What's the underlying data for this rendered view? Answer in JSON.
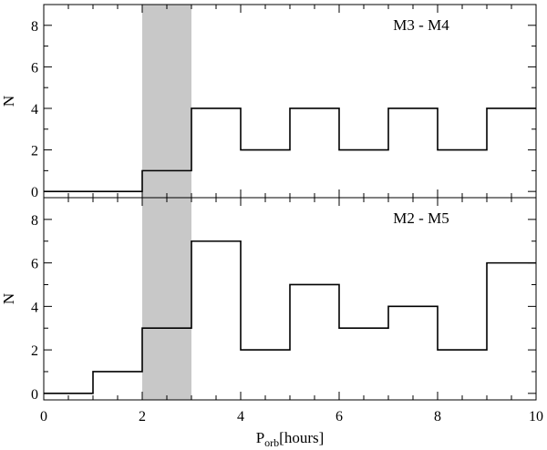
{
  "chart_data": [
    {
      "type": "step-histogram",
      "panel": "top",
      "label": "M3 - M4",
      "ylabel": "N",
      "xlabel": "",
      "xlim": [
        0,
        10
      ],
      "ylim": [
        -0.3,
        9
      ],
      "yticks": [
        0,
        2,
        4,
        6,
        8
      ],
      "bin_edges": [
        0,
        1,
        2,
        3,
        4,
        5,
        6,
        7,
        8,
        9,
        10
      ],
      "values": [
        0,
        0,
        1,
        4,
        2,
        4,
        2,
        4,
        2,
        4
      ],
      "shaded_region": [
        2,
        3
      ],
      "shade_color": "#c8c8c8"
    },
    {
      "type": "step-histogram",
      "panel": "bottom",
      "label": "M2 - M5",
      "ylabel": "N",
      "xlabel_main": "P",
      "xlabel_sub": "orb",
      "xlabel_unit": "[hours]",
      "xlim": [
        0,
        10
      ],
      "ylim": [
        -0.3,
        9
      ],
      "yticks": [
        0,
        2,
        4,
        6,
        8
      ],
      "xticks": [
        0,
        2,
        4,
        6,
        8,
        10
      ],
      "bin_edges": [
        0,
        1,
        2,
        3,
        4,
        5,
        6,
        7,
        8,
        9,
        10
      ],
      "values": [
        0,
        1,
        3,
        7,
        2,
        5,
        3,
        4,
        2,
        6
      ],
      "shaded_region": [
        2,
        3
      ],
      "shade_color": "#c8c8c8"
    }
  ]
}
